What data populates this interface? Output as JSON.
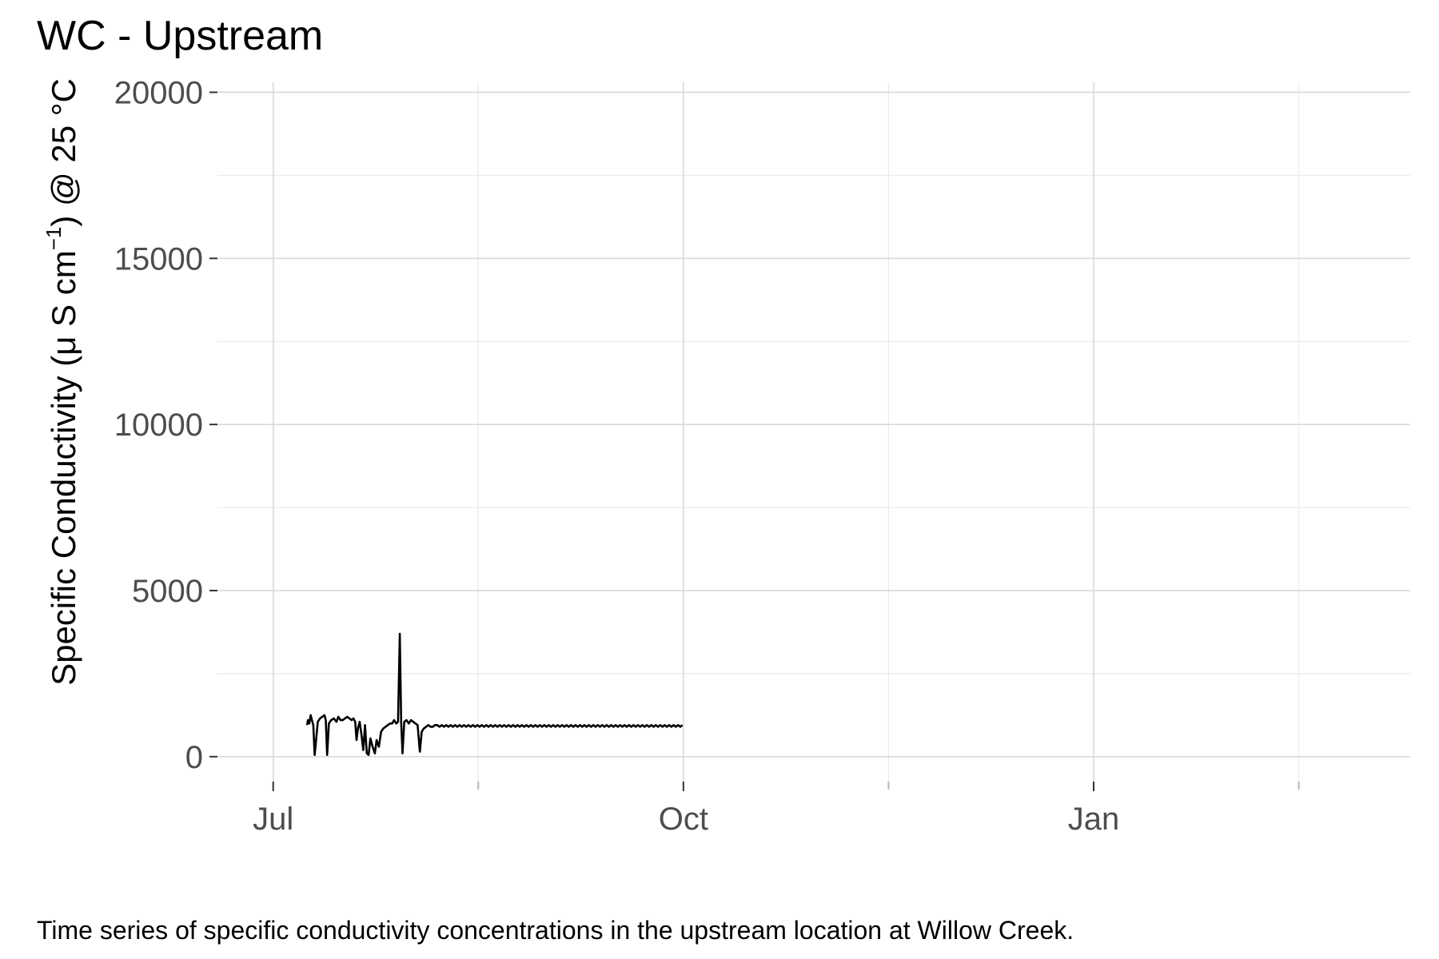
{
  "chart_data": {
    "type": "line",
    "title": "WC - Upstream",
    "ylabel": {
      "main": "Specific Conductivity (",
      "mu": "μ",
      "unit": " S cm",
      "exp": "−1",
      "tail": ") @ 25 °C"
    },
    "xlabel": "",
    "caption": "Time series of specific conductivity concentrations in the upstream location at Willow Creek.",
    "ylim": [
      -750,
      20300
    ],
    "y_ticks": [
      0,
      5000,
      10000,
      15000,
      20000
    ],
    "y_tick_labels": [
      "0",
      "5000",
      "10000",
      "15000",
      "20000"
    ],
    "x_ticks": [
      "Jul",
      "Oct",
      "Jan"
    ],
    "x_tick_values": [
      0,
      92,
      184
    ],
    "x_minor_ticks": [
      46,
      138,
      230
    ],
    "xlim": [
      -12.5,
      255
    ],
    "x_unit": "days from Jul 1",
    "grid": true,
    "legend": "none",
    "series": [
      {
        "color": "#000000",
        "points": [
          [
            7.6,
            950
          ],
          [
            7.8,
            1100
          ],
          [
            8.1,
            1000
          ],
          [
            8.4,
            1250
          ],
          [
            8.7,
            1100
          ],
          [
            9.0,
            950
          ],
          [
            9.3,
            50
          ],
          [
            9.7,
            600
          ],
          [
            10.0,
            1050
          ],
          [
            10.5,
            1150
          ],
          [
            11,
            1200
          ],
          [
            11.5,
            1250
          ],
          [
            11.8,
            1100
          ],
          [
            12.1,
            50
          ],
          [
            12.5,
            1000
          ],
          [
            13,
            1100
          ],
          [
            13.6,
            1150
          ],
          [
            14.2,
            1050
          ],
          [
            14.6,
            1200
          ],
          [
            15.1,
            1100
          ],
          [
            15.6,
            1100
          ],
          [
            16.1,
            1150
          ],
          [
            16.6,
            1200
          ],
          [
            17.1,
            1150
          ],
          [
            17.6,
            1100
          ],
          [
            18,
            1150
          ],
          [
            18.4,
            1050
          ],
          [
            18.7,
            500
          ],
          [
            19,
            850
          ],
          [
            19.4,
            1050
          ],
          [
            19.8,
            650
          ],
          [
            20.2,
            200
          ],
          [
            20.6,
            950
          ],
          [
            21.0,
            100
          ],
          [
            21.4,
            50
          ],
          [
            21.8,
            550
          ],
          [
            22.3,
            300
          ],
          [
            22.8,
            100
          ],
          [
            23.2,
            500
          ],
          [
            23.7,
            300
          ],
          [
            24.2,
            750
          ],
          [
            24.7,
            850
          ],
          [
            25.2,
            900
          ],
          [
            25.7,
            950
          ],
          [
            26.2,
            1000
          ],
          [
            26.7,
            1000
          ],
          [
            27.1,
            1100
          ],
          [
            27.6,
            1000
          ],
          [
            28,
            1050
          ],
          [
            28.4,
            3700
          ],
          [
            28.7,
            1050
          ],
          [
            29.0,
            100
          ],
          [
            29.4,
            1050
          ],
          [
            29.9,
            1100
          ],
          [
            30.4,
            1000
          ],
          [
            30.9,
            1100
          ],
          [
            31.4,
            1050
          ],
          [
            31.9,
            1000
          ],
          [
            32.4,
            950
          ],
          [
            32.9,
            150
          ],
          [
            33.3,
            750
          ],
          [
            33.8,
            850
          ],
          [
            34.3,
            900
          ],
          [
            34.8,
            950
          ],
          [
            35.3,
            900
          ],
          [
            35.8,
            900
          ],
          [
            36.3,
            950
          ],
          [
            36.8,
            950
          ],
          [
            37.3,
            900
          ],
          [
            37.8,
            950
          ],
          [
            38.3,
            900
          ],
          [
            38.8,
            950
          ],
          [
            39.3,
            900
          ],
          [
            39.8,
            950
          ],
          [
            40.3,
            900
          ],
          [
            40.8,
            950
          ],
          [
            41.3,
            900
          ],
          [
            41.8,
            950
          ],
          [
            42.3,
            900
          ],
          [
            42.8,
            950
          ],
          [
            43.3,
            900
          ],
          [
            43.8,
            950
          ],
          [
            44.3,
            900
          ],
          [
            44.8,
            950
          ],
          [
            45.3,
            900
          ],
          [
            45.8,
            950
          ],
          [
            46.3,
            900
          ],
          [
            46.8,
            950
          ],
          [
            47.3,
            900
          ],
          [
            47.8,
            950
          ],
          [
            48.3,
            900
          ],
          [
            48.8,
            950
          ],
          [
            49.3,
            900
          ],
          [
            49.8,
            950
          ],
          [
            50.3,
            900
          ],
          [
            50.8,
            950
          ],
          [
            51.3,
            900
          ],
          [
            51.8,
            950
          ],
          [
            52.3,
            900
          ],
          [
            52.8,
            950
          ],
          [
            53.3,
            900
          ],
          [
            53.8,
            950
          ],
          [
            54.3,
            900
          ],
          [
            54.8,
            950
          ],
          [
            55.3,
            900
          ],
          [
            55.8,
            950
          ],
          [
            56.3,
            900
          ],
          [
            56.8,
            950
          ],
          [
            57.3,
            900
          ],
          [
            57.8,
            950
          ],
          [
            58.3,
            900
          ],
          [
            58.8,
            950
          ],
          [
            59.3,
            900
          ],
          [
            59.8,
            950
          ],
          [
            60.3,
            900
          ],
          [
            60.8,
            950
          ],
          [
            61.3,
            900
          ],
          [
            61.8,
            950
          ],
          [
            62.3,
            900
          ],
          [
            62.8,
            950
          ],
          [
            63.3,
            900
          ],
          [
            63.8,
            950
          ],
          [
            64.3,
            900
          ],
          [
            64.8,
            950
          ],
          [
            65.3,
            900
          ],
          [
            65.8,
            950
          ],
          [
            66.3,
            900
          ],
          [
            66.8,
            950
          ],
          [
            67.3,
            900
          ],
          [
            67.8,
            950
          ],
          [
            68.3,
            900
          ],
          [
            68.8,
            950
          ],
          [
            69.3,
            900
          ],
          [
            69.8,
            950
          ],
          [
            70.3,
            900
          ],
          [
            70.8,
            950
          ],
          [
            71.3,
            900
          ],
          [
            71.8,
            950
          ],
          [
            72.3,
            900
          ],
          [
            72.8,
            950
          ],
          [
            73.3,
            900
          ],
          [
            73.8,
            950
          ],
          [
            74.3,
            900
          ],
          [
            74.8,
            950
          ],
          [
            75.3,
            900
          ],
          [
            75.8,
            950
          ],
          [
            76.3,
            900
          ],
          [
            76.8,
            950
          ],
          [
            77.3,
            900
          ],
          [
            77.8,
            950
          ],
          [
            78.3,
            900
          ],
          [
            78.8,
            950
          ],
          [
            79.3,
            900
          ],
          [
            79.8,
            950
          ],
          [
            80.3,
            900
          ],
          [
            80.8,
            950
          ],
          [
            81.3,
            900
          ],
          [
            81.8,
            950
          ],
          [
            82.3,
            900
          ],
          [
            82.8,
            950
          ],
          [
            83.3,
            900
          ],
          [
            83.8,
            950
          ],
          [
            84.3,
            900
          ],
          [
            84.8,
            950
          ],
          [
            85.3,
            900
          ],
          [
            85.8,
            950
          ],
          [
            86.3,
            900
          ],
          [
            86.8,
            950
          ],
          [
            87.3,
            900
          ],
          [
            87.8,
            950
          ],
          [
            88.3,
            900
          ],
          [
            88.8,
            950
          ],
          [
            89.3,
            900
          ],
          [
            89.8,
            950
          ],
          [
            90.3,
            900
          ],
          [
            90.8,
            950
          ],
          [
            91.3,
            900
          ],
          [
            91.8,
            950
          ]
        ]
      }
    ]
  }
}
